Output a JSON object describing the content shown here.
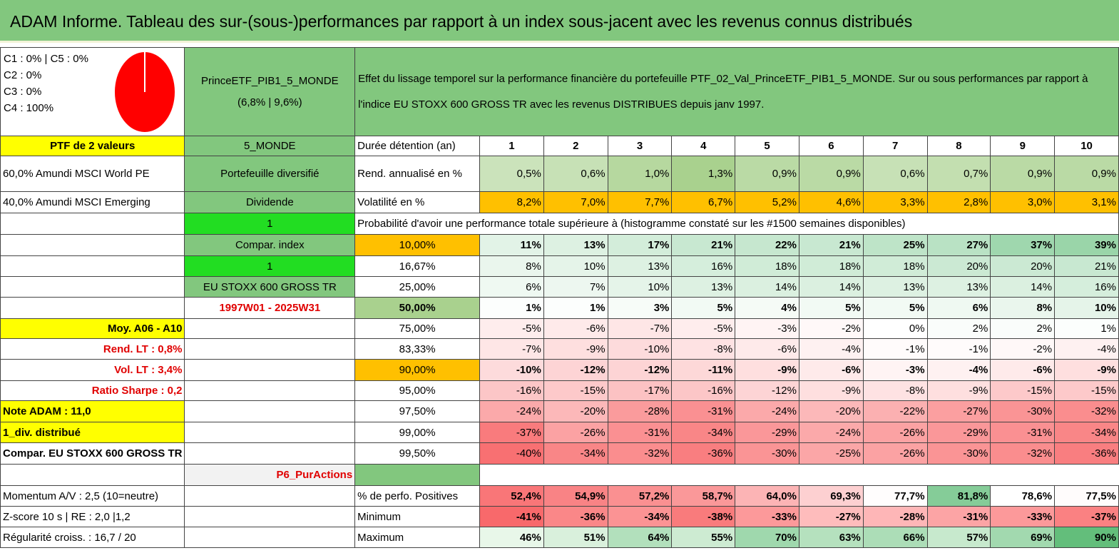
{
  "title": "ADAM Informe. Tableau des sur-(sous-)performances par rapport à un index sous-jacent avec les revenus connus distribués",
  "colors": {
    "header_green": "#82c77e",
    "yellow": "#ffff00",
    "bright_green": "#22dd22",
    "orange": "#ffc000",
    "red_text": "#e00000",
    "pie_fill": "#ff0000"
  },
  "categories": {
    "c1_c5": "C1 : 0% | C5 : 0%",
    "c2": "C2 : 0%",
    "c3": "C3 : 0%",
    "c4": "C4 : 100%"
  },
  "pie": {
    "c4_share": 1.0
  },
  "prince_name": "PrinceETF_PIB1_5_MONDE",
  "prince_stats": "(6,8% | 9,6%)",
  "description": "Effet du lissage temporel sur la performance financière du portefeuille PTF_02_Val_PrinceETF_PIB1_5_MONDE. Sur ou sous performances par rapport à l'indice EU STOXX 600 GROSS TR avec les revenus DISTRIBUES depuis janv 1997.",
  "left_col": {
    "ptf": "PTF de 2 valeurs",
    "holding1": "60,0% Amundi MSCI World PE",
    "holding2": "40,0% Amundi MSCI Emerging",
    "moy": "Moy. A06 - A10",
    "rend_lt": "Rend. LT : 0,8%",
    "vol_lt": "Vol. LT : 3,4%",
    "sharpe": "Ratio Sharpe : 0,2",
    "note": "Note ADAM : 11,0",
    "div": "1_div. distribué",
    "compar": "Compar. EU STOXX 600 GROSS TR",
    "momentum": "Momentum A/V : 2,5 (10=neutre)",
    "zscore": "Z-score 10 s | RE : 2,0 |1,2",
    "regularite": "Régularité croiss. : 16,7 / 20"
  },
  "mid_col": {
    "monde": "5_MONDE",
    "diversifie": "Portefeuille diversifié",
    "dividende": "Dividende",
    "one_a": "1",
    "compar_index": "Compar. index",
    "one_b": "1",
    "index": "EU STOXX 600 GROSS TR",
    "period": "1997W01 - 2025W31",
    "p6": "P6_PurActions"
  },
  "labels": {
    "duree": "Durée détention (an)",
    "rend": "Rend. annualisé en %",
    "vol": "Volatilité en %",
    "proba": "Probabilité d'avoir une performance totale supérieure à (histogramme constaté sur les #1500 semaines disponibles)",
    "pos": "% de perfo. Positives",
    "min": "Minimum",
    "max": "Maximum"
  },
  "years": [
    "1",
    "2",
    "3",
    "4",
    "5",
    "6",
    "7",
    "8",
    "9",
    "10"
  ],
  "rend": [
    "0,5%",
    "0,6%",
    "1,0%",
    "1,3%",
    "0,9%",
    "0,9%",
    "0,6%",
    "0,7%",
    "0,9%",
    "0,9%"
  ],
  "vol": [
    "8,2%",
    "7,0%",
    "7,7%",
    "6,7%",
    "5,2%",
    "4,6%",
    "3,3%",
    "2,8%",
    "3,0%",
    "3,1%"
  ],
  "percentiles": [
    {
      "label": "10,00%",
      "values": [
        "11%",
        "13%",
        "17%",
        "21%",
        "22%",
        "21%",
        "25%",
        "27%",
        "37%",
        "39%"
      ]
    },
    {
      "label": "16,67%",
      "values": [
        "8%",
        "10%",
        "13%",
        "16%",
        "18%",
        "18%",
        "18%",
        "20%",
        "20%",
        "21%"
      ]
    },
    {
      "label": "25,00%",
      "values": [
        "6%",
        "7%",
        "10%",
        "13%",
        "14%",
        "14%",
        "13%",
        "13%",
        "14%",
        "16%"
      ]
    },
    {
      "label": "50,00%",
      "values": [
        "1%",
        "1%",
        "3%",
        "5%",
        "4%",
        "5%",
        "5%",
        "6%",
        "8%",
        "10%"
      ]
    },
    {
      "label": "75,00%",
      "values": [
        "-5%",
        "-6%",
        "-7%",
        "-5%",
        "-3%",
        "-2%",
        "0%",
        "2%",
        "2%",
        "1%"
      ]
    },
    {
      "label": "83,33%",
      "values": [
        "-7%",
        "-9%",
        "-10%",
        "-8%",
        "-6%",
        "-4%",
        "-1%",
        "-1%",
        "-2%",
        "-4%"
      ]
    },
    {
      "label": "90,00%",
      "values": [
        "-10%",
        "-12%",
        "-12%",
        "-11%",
        "-9%",
        "-6%",
        "-3%",
        "-4%",
        "-6%",
        "-9%"
      ]
    },
    {
      "label": "95,00%",
      "values": [
        "-16%",
        "-15%",
        "-17%",
        "-16%",
        "-12%",
        "-9%",
        "-8%",
        "-9%",
        "-15%",
        "-15%"
      ]
    },
    {
      "label": "97,50%",
      "values": [
        "-24%",
        "-20%",
        "-28%",
        "-31%",
        "-24%",
        "-20%",
        "-22%",
        "-27%",
        "-30%",
        "-32%"
      ]
    },
    {
      "label": "99,00%",
      "values": [
        "-37%",
        "-26%",
        "-31%",
        "-34%",
        "-29%",
        "-24%",
        "-26%",
        "-29%",
        "-31%",
        "-34%"
      ]
    },
    {
      "label": "99,50%",
      "values": [
        "-40%",
        "-34%",
        "-32%",
        "-36%",
        "-30%",
        "-25%",
        "-26%",
        "-30%",
        "-32%",
        "-36%"
      ]
    }
  ],
  "pos": [
    "52,4%",
    "54,9%",
    "57,2%",
    "58,7%",
    "64,0%",
    "69,3%",
    "77,7%",
    "81,8%",
    "78,6%",
    "77,5%"
  ],
  "min": [
    "-41%",
    "-36%",
    "-34%",
    "-38%",
    "-33%",
    "-27%",
    "-28%",
    "-31%",
    "-33%",
    "-37%"
  ],
  "max": [
    "46%",
    "51%",
    "64%",
    "55%",
    "70%",
    "63%",
    "66%",
    "57%",
    "69%",
    "90%"
  ]
}
